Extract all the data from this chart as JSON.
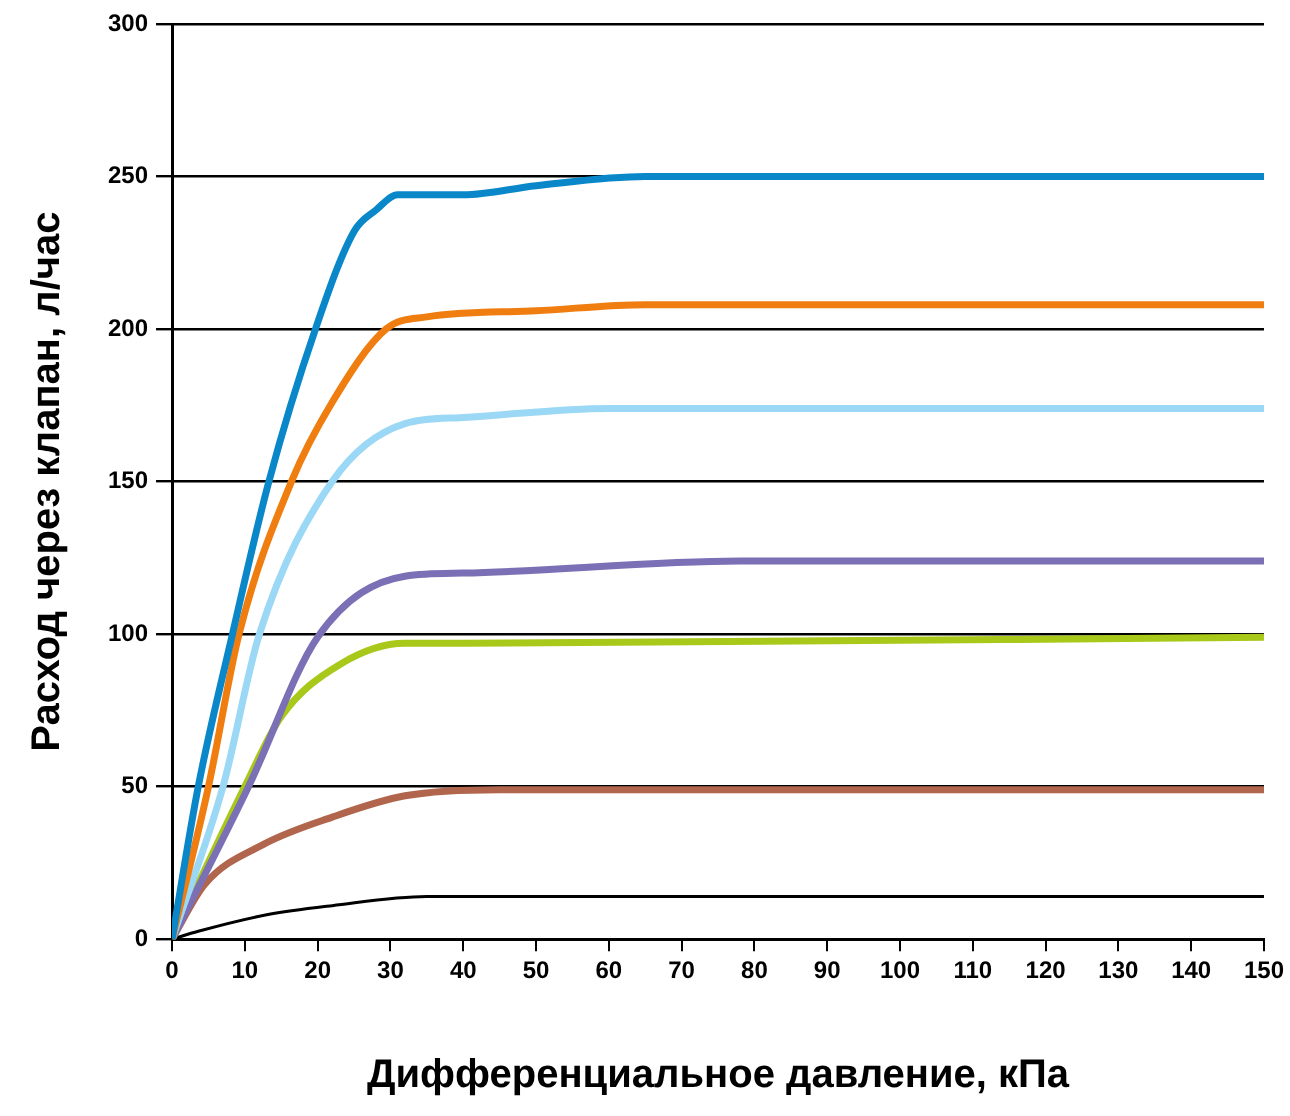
{
  "chart_data": {
    "type": "line",
    "xlabel": "Дифференциальное давление, кПа",
    "ylabel": "Расход через клапан, л/час",
    "xlim": [
      0,
      150
    ],
    "xticks": [
      0,
      10,
      20,
      30,
      40,
      50,
      60,
      70,
      80,
      90,
      100,
      110,
      120,
      130,
      140,
      150
    ],
    "ylim": [
      0,
      300
    ],
    "yticks": [
      0,
      50,
      100,
      150,
      200,
      250,
      300
    ],
    "grid": "y",
    "legend": false,
    "marker": "none",
    "line_style": "solid",
    "series": [
      {
        "color": "#0a87c9",
        "x": [
          0,
          3.6,
          8.3,
          13.3,
          19.7,
          25,
          28,
          31,
          40,
          50,
          65,
          80,
          150
        ],
        "values": [
          0,
          50,
          100,
          150,
          200,
          232,
          239,
          244,
          244,
          247,
          250,
          250,
          250
        ]
      },
      {
        "color": "#ef7d0f",
        "x": [
          0,
          5,
          9.2,
          16.4,
          22,
          29.4,
          35,
          50,
          65,
          150
        ],
        "values": [
          0,
          50,
          100,
          150,
          176,
          200,
          204,
          206,
          208,
          208
        ]
      },
      {
        "color": "#9bd8f5",
        "x": [
          0,
          7,
          12,
          22,
          32,
          40,
          60,
          150
        ],
        "values": [
          0,
          50,
          100,
          150,
          169,
          171,
          174,
          174
        ]
      },
      {
        "color": "#7b6fb6",
        "x": [
          0,
          10.5,
          20,
          32,
          40,
          78,
          150
        ],
        "values": [
          0,
          50,
          99,
          119,
          120,
          124,
          124
        ]
      },
      {
        "color": "#a8c81a",
        "x": [
          0,
          10,
          15,
          23,
          32,
          40,
          150
        ],
        "values": [
          0,
          50,
          73,
          90,
          97,
          97,
          99
        ]
      },
      {
        "color": "#b0654c",
        "x": [
          0,
          4.5,
          12.5,
          22,
          32,
          45,
          150
        ],
        "values": [
          0,
          18,
          31,
          40,
          47,
          49,
          49
        ]
      },
      {
        "color": "#000000",
        "x": [
          0,
          3.6,
          13,
          22,
          35,
          150
        ],
        "values": [
          0,
          2.6,
          8,
          11,
          14,
          14
        ]
      }
    ]
  }
}
